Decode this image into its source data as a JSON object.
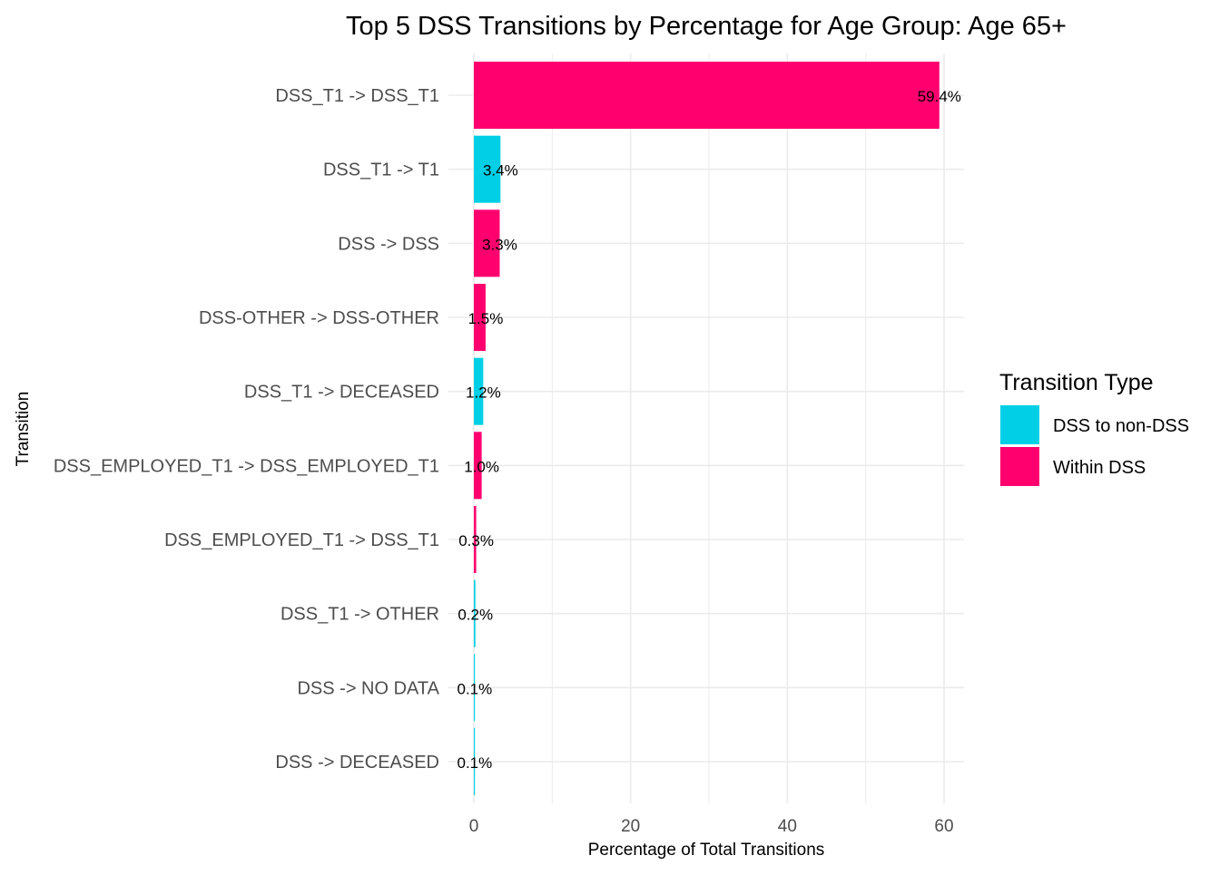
{
  "chart_data": {
    "type": "bar",
    "orientation": "horizontal",
    "title": "Top 5 DSS Transitions by Percentage for Age Group: Age 65+",
    "xlabel": "Percentage of Total Transitions",
    "ylabel": "Transition",
    "xlim": [
      0,
      62
    ],
    "xticks": [
      0,
      20,
      40,
      60
    ],
    "grid": true,
    "legend": {
      "title": "Transition Type",
      "position": "right",
      "entries": [
        {
          "name": "DSS to non-DSS",
          "color": "#00CFE6"
        },
        {
          "name": "Within DSS",
          "color": "#FF006E"
        }
      ]
    },
    "categories": [
      "DSS_T1 -> DSS_T1",
      "DSS_T1 -> T1",
      "DSS -> DSS",
      "DSS-OTHER -> DSS-OTHER",
      "DSS_T1 -> DECEASED",
      "DSS_EMPLOYED_T1 -> DSS_EMPLOYED_T1",
      "DSS_EMPLOYED_T1 -> DSS_T1",
      "DSS_T1 -> OTHER",
      "DSS -> NO DATA",
      "DSS -> DECEASED"
    ],
    "values": [
      59.4,
      3.4,
      3.3,
      1.5,
      1.2,
      1.0,
      0.3,
      0.2,
      0.1,
      0.1
    ],
    "labels": [
      "59.4%",
      "3.4%",
      "3.3%",
      "1.5%",
      "1.2%",
      "1.0%",
      "0.3%",
      "0.2%",
      "0.1%",
      "0.1%"
    ],
    "types": [
      "Within DSS",
      "DSS to non-DSS",
      "Within DSS",
      "Within DSS",
      "DSS to non-DSS",
      "Within DSS",
      "Within DSS",
      "DSS to non-DSS",
      "DSS to non-DSS",
      "DSS to non-DSS"
    ]
  }
}
